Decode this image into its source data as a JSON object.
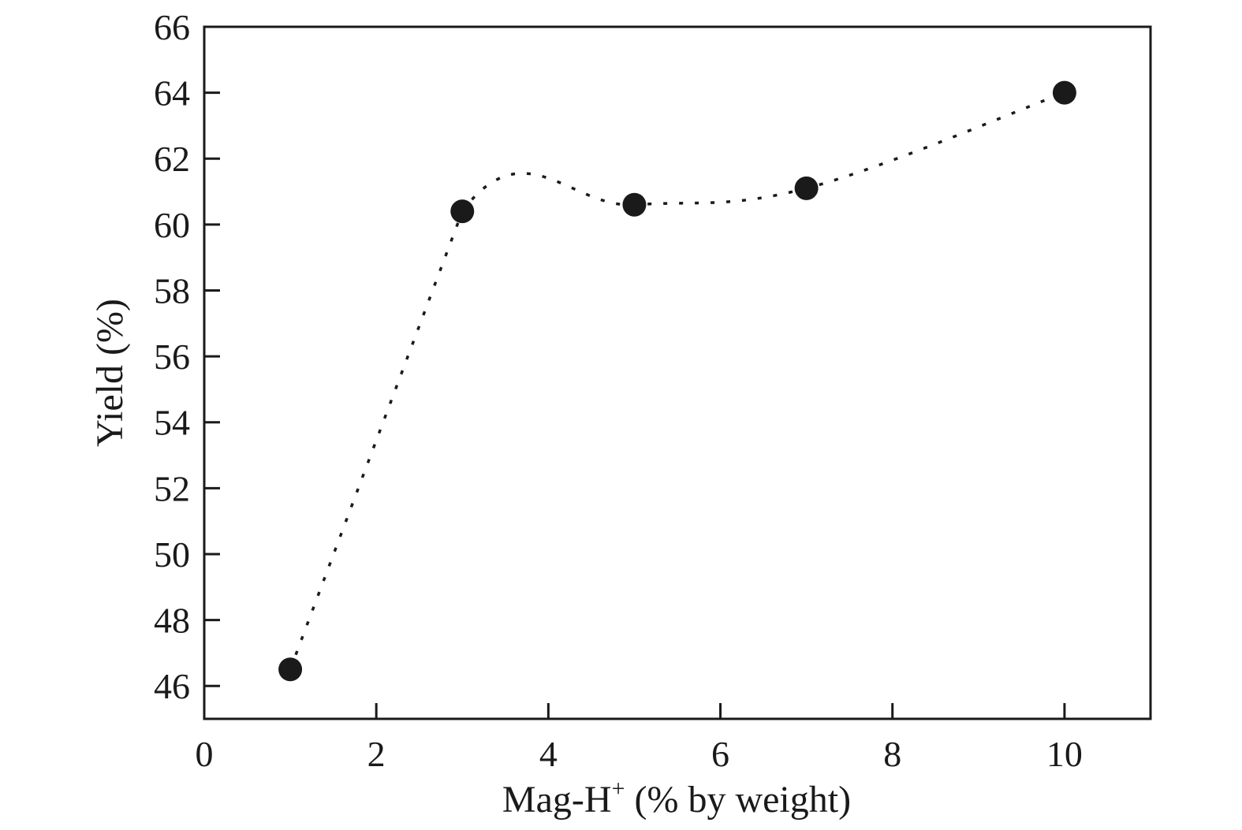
{
  "chart_data": {
    "type": "scatter",
    "title": "",
    "xlabel": "Mag-H",
    "xlabel_superscript": "+",
    "xlabel_suffix": " (% by weight)",
    "ylabel": "Yield (%)",
    "xlim": [
      0,
      11
    ],
    "ylim": [
      45,
      66
    ],
    "xticks": [
      0,
      2,
      4,
      6,
      8,
      10
    ],
    "yticks": [
      46,
      48,
      50,
      52,
      54,
      56,
      58,
      60,
      62,
      64,
      66
    ],
    "grid": false,
    "series": [
      {
        "name": "Yield",
        "x": [
          1,
          3,
          5,
          7,
          10
        ],
        "y": [
          46.5,
          60.4,
          60.6,
          61.1,
          64.0
        ],
        "marker": "circle",
        "line_style": "dotted"
      }
    ],
    "colors": {
      "marker": "#1a1a1a",
      "axis": "#1a1a1a",
      "line": "#1a1a1a"
    }
  }
}
